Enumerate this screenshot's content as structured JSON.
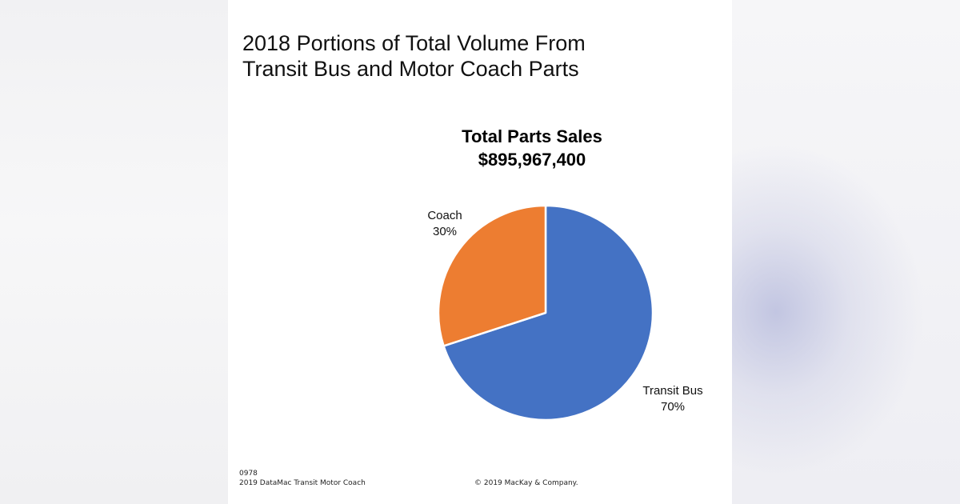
{
  "slide": {
    "title_lines": [
      "2018 Portions of Total Volume From",
      "Transit Bus and Motor Coach Parts"
    ],
    "footer": {
      "code": "0978",
      "source": "2019 DataMac Transit Motor Coach",
      "copyright": "© 2019 MacKay & Company."
    }
  },
  "chart_data": {
    "type": "pie",
    "title": "Total Parts Sales",
    "subtitle": "$895,967,400",
    "slices": [
      {
        "label": "Transit Bus",
        "value": 70,
        "display": "70%",
        "color": "#4472C4"
      },
      {
        "label": "Coach",
        "value": 30,
        "display": "30%",
        "color": "#ED7D31"
      }
    ],
    "start_angle_deg": 0,
    "direction": "clockwise",
    "legend": "none"
  }
}
